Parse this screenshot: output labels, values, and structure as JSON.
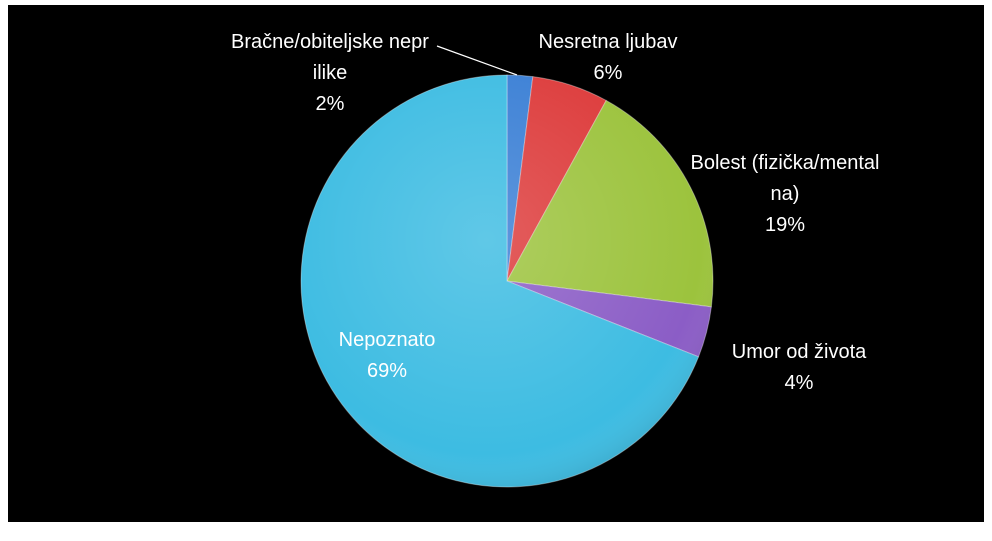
{
  "chart_data": {
    "type": "pie",
    "categories": [
      "Bračne/obiteljske neprilike",
      "Nesretna ljubav",
      "Bolest (fizička/mentalna)",
      "Umor od života",
      "Nepoznato"
    ],
    "values": [
      2,
      6,
      19,
      4,
      69
    ],
    "value_labels": [
      "2%",
      "6%",
      "19%",
      "4%",
      "69%"
    ],
    "colors": [
      "#3a7fd5",
      "#dd3b3b",
      "#9cc33d",
      "#8b5dc6",
      "#3dbce2"
    ]
  }
}
